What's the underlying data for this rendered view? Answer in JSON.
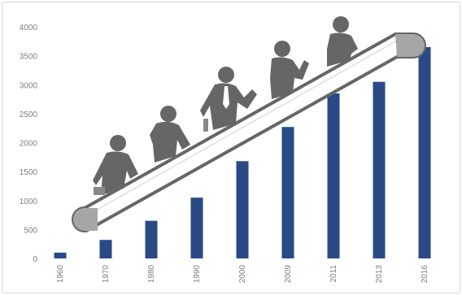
{
  "chart_data": {
    "type": "bar",
    "categories": [
      "1960",
      "1970",
      "1980",
      "1990",
      "2000",
      "2009",
      "2011",
      "2013",
      "2016"
    ],
    "values": [
      100,
      320,
      650,
      1050,
      1680,
      2270,
      2850,
      3050,
      3650
    ],
    "ylim": [
      0,
      4000
    ],
    "yticks": [
      0,
      500,
      1000,
      1500,
      2000,
      2500,
      3000,
      3500,
      4000
    ],
    "grid": false,
    "legend": "none",
    "colors": {
      "bar": "#2a4a86",
      "illustration": "#666666",
      "escalator_end": "#a6a6a6"
    },
    "illustration": {
      "description_icons": [
        "escalator-icon",
        "person-icon",
        "briefcase-icon"
      ]
    }
  }
}
